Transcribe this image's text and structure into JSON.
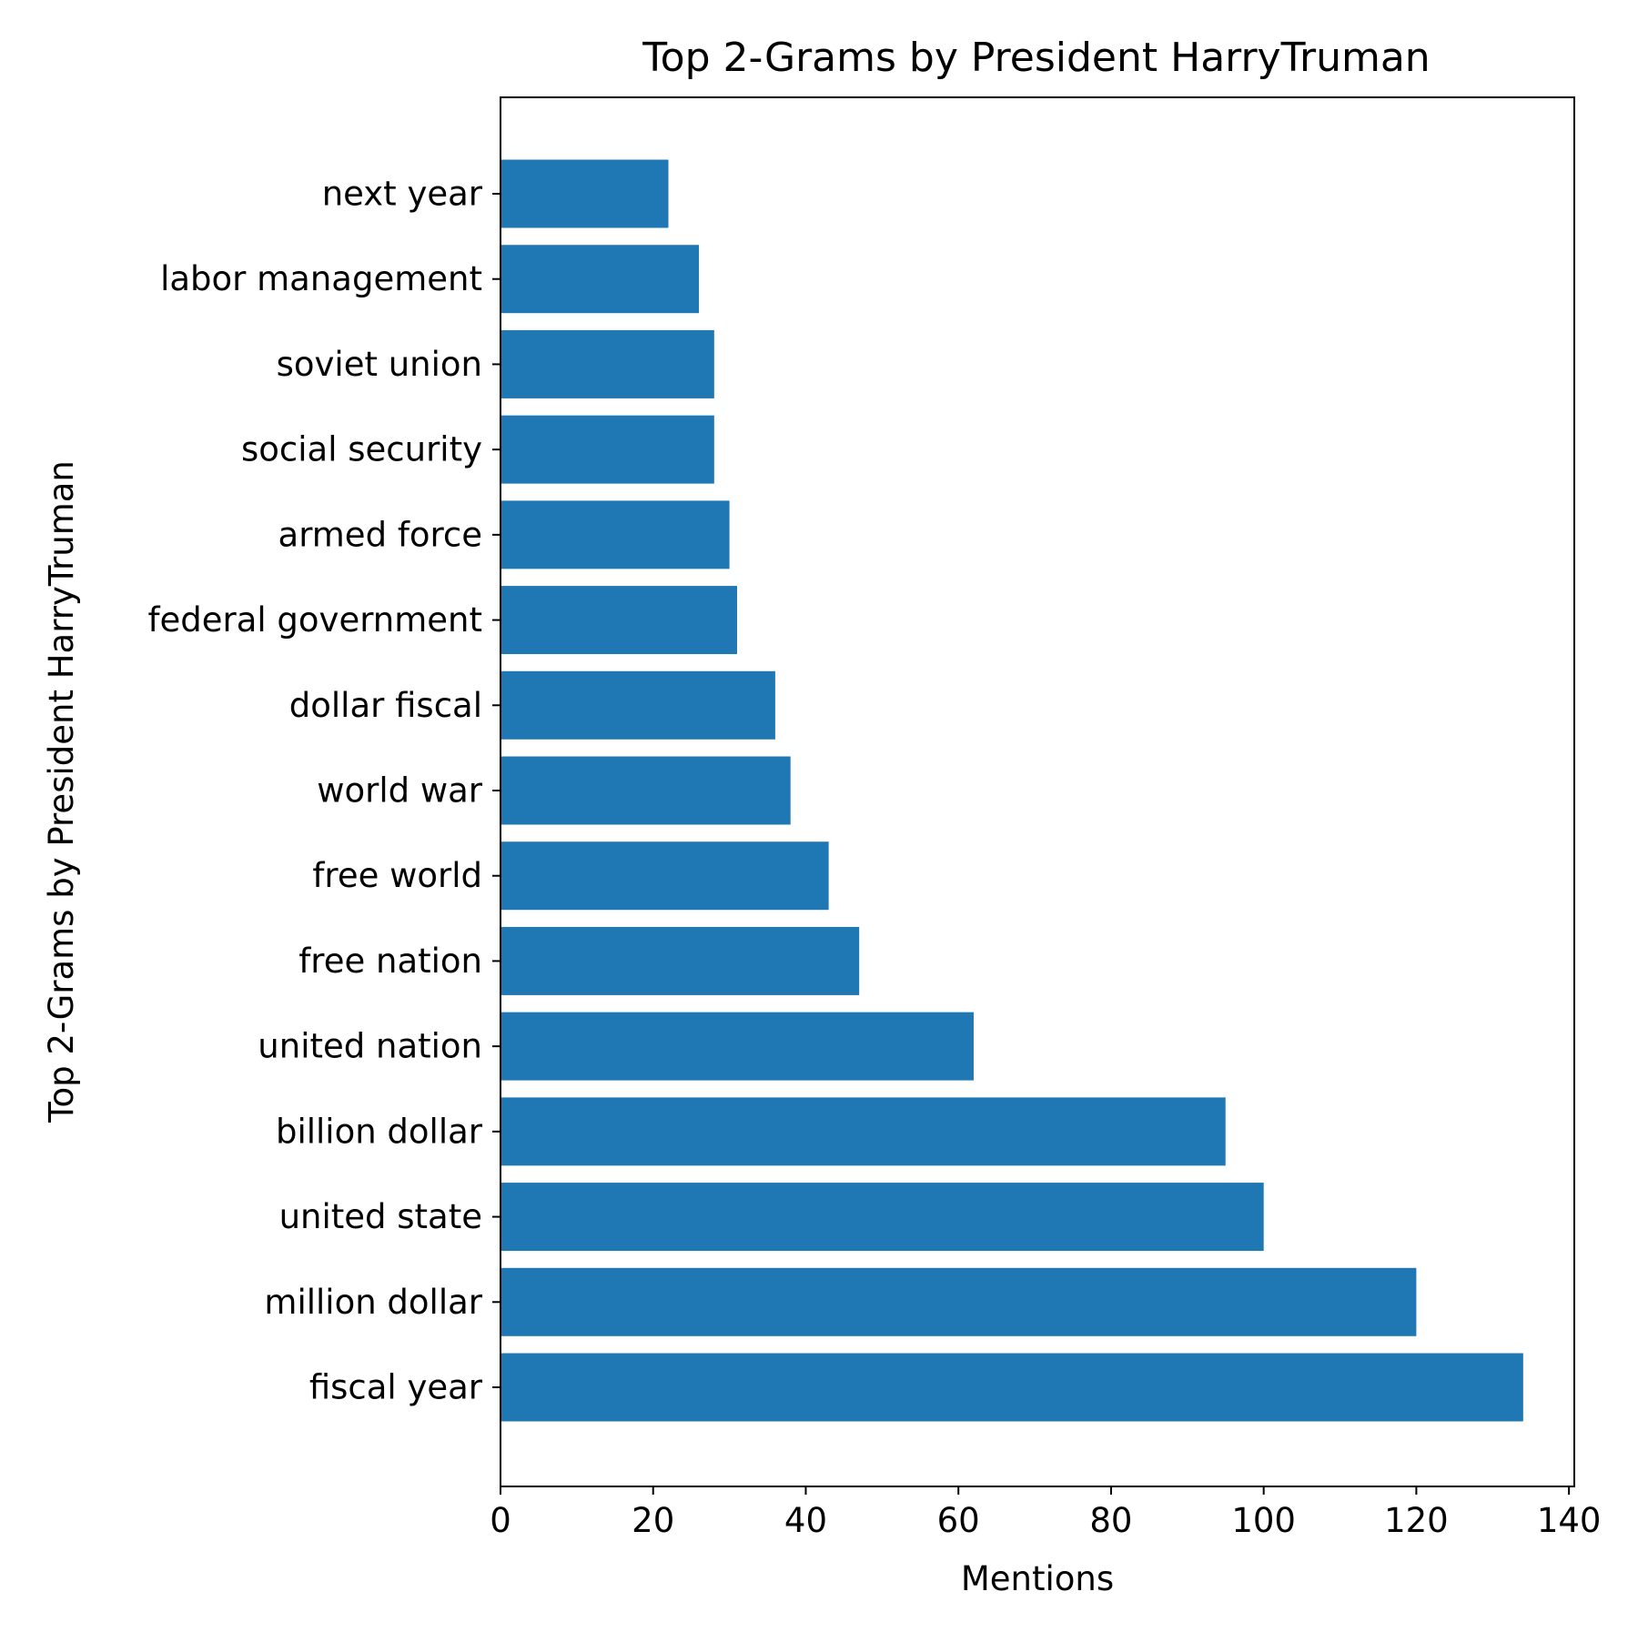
{
  "chart_data": {
    "type": "bar",
    "orientation": "horizontal",
    "title": "Top 2-Grams by President HarryTruman",
    "xlabel": "Mentions",
    "ylabel": "Top 2-Grams by President HarryTruman",
    "categories": [
      "fiscal year",
      "million dollar",
      "united state",
      "billion dollar",
      "united nation",
      "free nation",
      "free world",
      "world war",
      "dollar fiscal",
      "federal government",
      "armed force",
      "social security",
      "soviet union",
      "labor management",
      "next year"
    ],
    "values": [
      134,
      120,
      100,
      95,
      62,
      47,
      43,
      38,
      36,
      31,
      30,
      28,
      28,
      26,
      22
    ],
    "xlim": [
      0,
      140.7
    ],
    "xticks": [
      0,
      20,
      40,
      60,
      80,
      100,
      120,
      140
    ],
    "grid": false,
    "legend": "none",
    "bar_color": "#1f77b4"
  }
}
